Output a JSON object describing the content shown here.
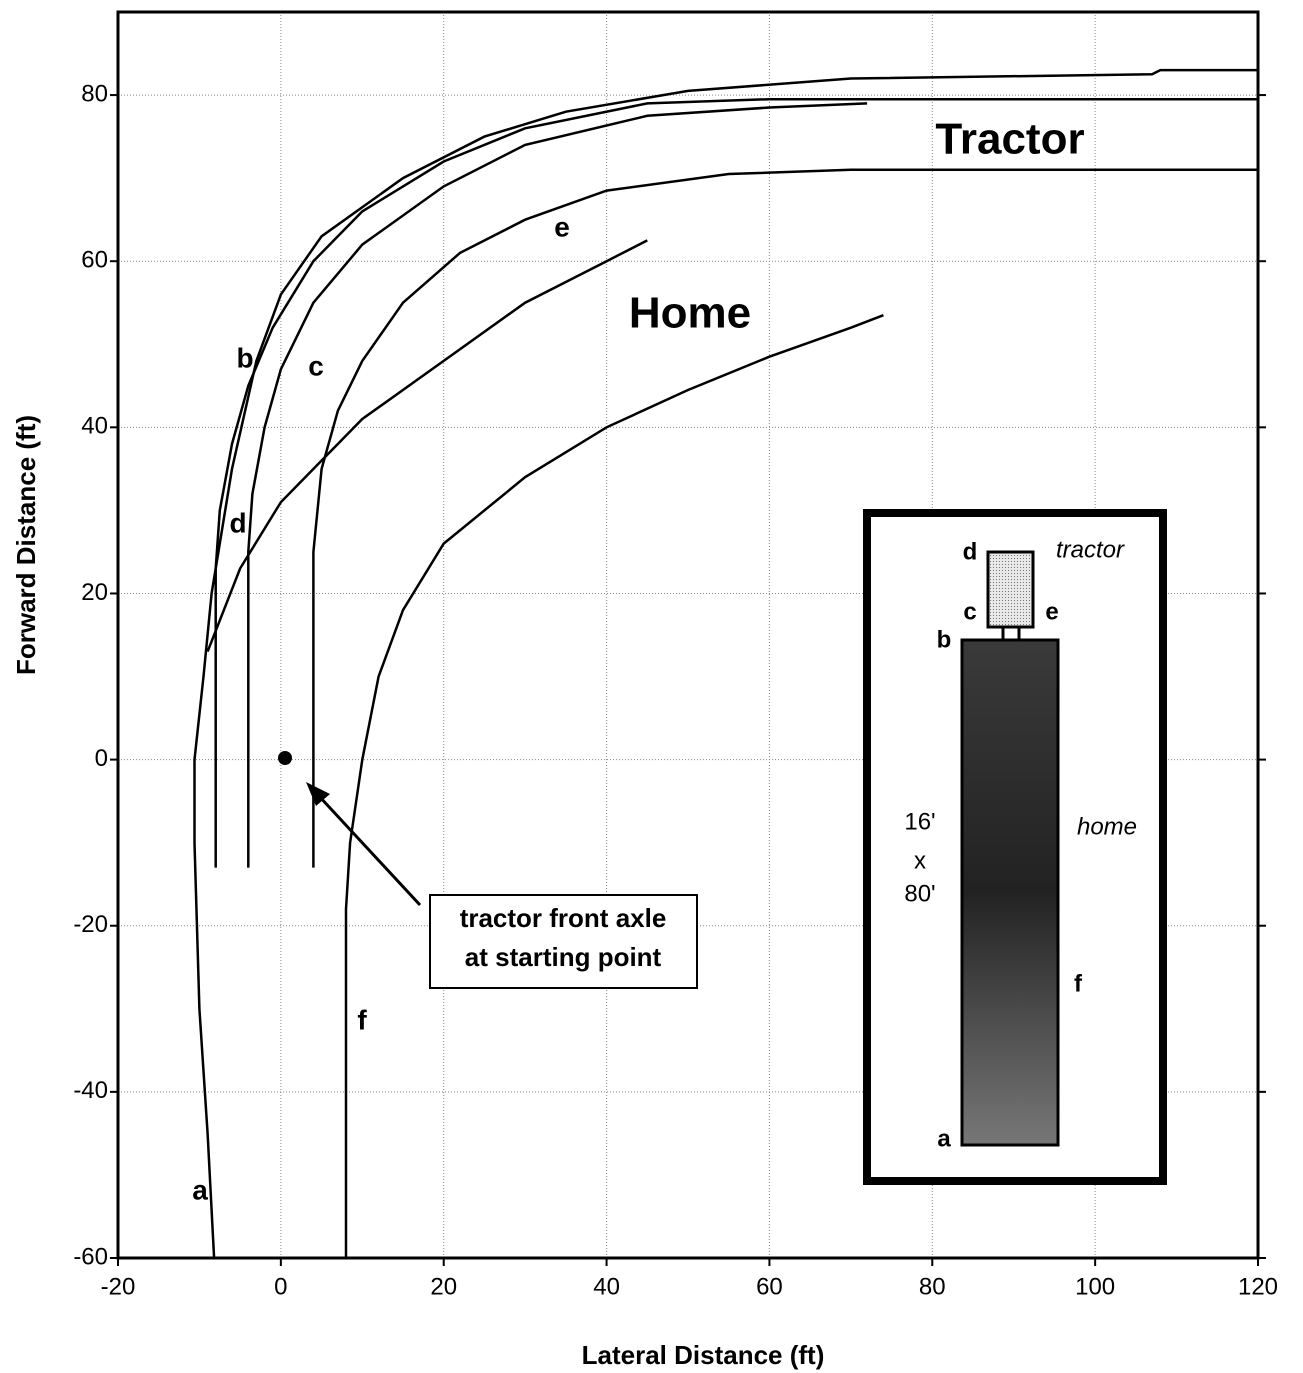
{
  "chart_data": {
    "type": "line",
    "xlabel": "Lateral Distance (ft)",
    "ylabel": "Forward Distance (ft)",
    "xlim": [
      -20,
      120
    ],
    "ylim": [
      -60,
      90
    ],
    "xticks": [
      -20,
      0,
      20,
      40,
      60,
      80,
      100,
      120
    ],
    "yticks": [
      -60,
      -40,
      -20,
      0,
      20,
      40,
      60,
      80
    ],
    "grid": true,
    "series": [
      {
        "name": "a",
        "color": "#000000",
        "x": [
          -8.2,
          -9,
          -10,
          -10.6,
          -10.6,
          -9.5,
          -8.5,
          -6,
          -3,
          0,
          5,
          15,
          25,
          35,
          50,
          70,
          107,
          108,
          120
        ],
        "values": [
          -60,
          -45,
          -30,
          -10,
          0,
          10,
          20,
          35,
          48,
          56,
          63,
          70,
          75,
          78,
          80.5,
          82,
          82.5,
          83,
          83
        ]
      },
      {
        "name": "b",
        "color": "#000000",
        "x": [
          -8,
          -8,
          -7.5,
          -6,
          -4,
          -1,
          4,
          10,
          20,
          30,
          45,
          60,
          80,
          120
        ],
        "values": [
          -13,
          23,
          30,
          38,
          45,
          52,
          60,
          66,
          72,
          76,
          79,
          79.5,
          79.5,
          79.5
        ]
      },
      {
        "name": "c",
        "color": "#000000",
        "x": [
          4,
          4,
          5,
          7,
          10,
          15,
          22,
          30,
          40,
          55,
          70,
          120
        ],
        "values": [
          -13,
          25,
          35,
          42,
          48,
          55,
          61,
          65,
          68.5,
          70.5,
          71,
          71
        ]
      },
      {
        "name": "d",
        "color": "#000000",
        "x": [
          -4,
          -4,
          -3.5,
          -2,
          0,
          4,
          10,
          20,
          30,
          45,
          60,
          72
        ],
        "values": [
          -13,
          25,
          32,
          40,
          47,
          55,
          62,
          69,
          74,
          77.5,
          78.5,
          79
        ]
      },
      {
        "name": "e",
        "color": "#000000",
        "x": [
          -9,
          -5,
          0,
          10,
          20,
          30,
          40,
          45
        ],
        "values": [
          13,
          23,
          31,
          41,
          48,
          55,
          60,
          62.5
        ]
      },
      {
        "name": "f",
        "color": "#000000",
        "x": [
          8,
          8,
          8.5,
          10,
          12,
          15,
          20,
          30,
          40,
          50,
          60,
          70,
          74
        ],
        "values": [
          -60,
          -18,
          -10,
          0,
          10,
          18,
          26,
          34,
          40,
          44.5,
          48.5,
          52,
          53.5
        ]
      }
    ],
    "annotations": {
      "tractor": "Tractor",
      "home": "Home",
      "callout": [
        "tractor front axle",
        "at starting point"
      ]
    },
    "inset": {
      "d": "d",
      "tractor": "tractor",
      "c": "c",
      "e": "e",
      "b": "b",
      "width": "16'",
      "x": "x",
      "length": "80'",
      "home": "home",
      "f": "f",
      "a": "a"
    }
  }
}
